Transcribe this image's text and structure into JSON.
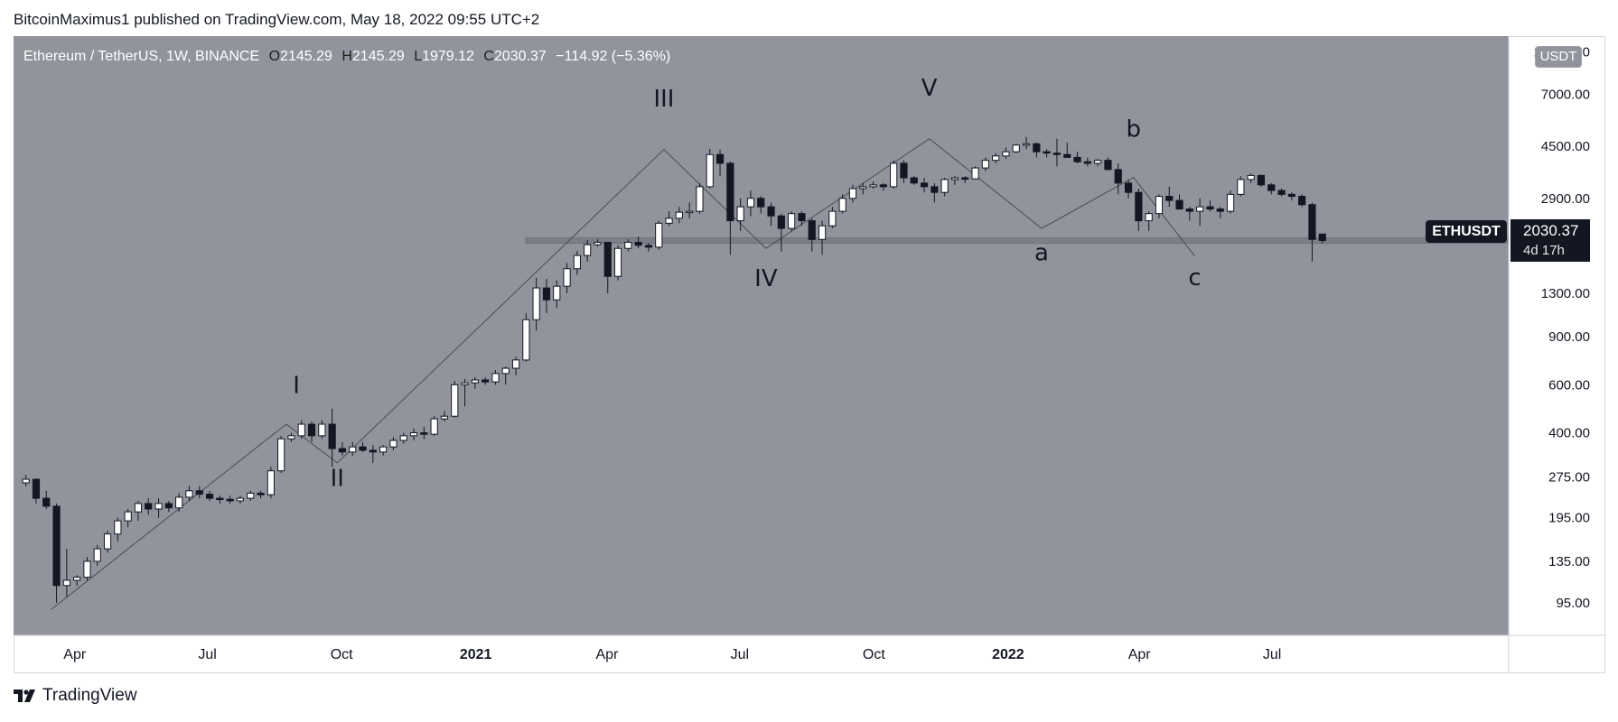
{
  "header": {
    "publisher_line": "BitcoinMaximus1 published on TradingView.com, May 18, 2022 09:55 UTC+2"
  },
  "legend": {
    "symbol": "Ethereum / TetherUS, 1W, BINANCE",
    "open_label": "O",
    "open": "2145.29",
    "high_label": "H",
    "high": "2145.29",
    "low_label": "L",
    "low": "1979.12",
    "close_label": "C",
    "close": "2030.37",
    "change": "−114.92 (−5.36%)"
  },
  "price_axis": {
    "currency": "USDT",
    "symbol_tag": "ETHUSDT",
    "last_price": "2030.37",
    "countdown": "4d 17h"
  },
  "footer": {
    "brand": "TradingView"
  },
  "colors": {
    "plot_background": "#91949c",
    "up_candle": "#ffffff",
    "down_candle": "#131722",
    "wave_line": "#4a4c52",
    "support_band": "#7c7f87",
    "label_text": "#131722"
  },
  "chart_data": {
    "type": "candlestick",
    "interval": "1W",
    "scale": "log",
    "ylim": [
      75,
      11000
    ],
    "x_start_week": "2020-02-24",
    "x_end_date": "2022-08-01",
    "y_ticks": [
      95,
      135,
      195,
      275,
      400,
      600,
      900,
      1300,
      2900,
      4500,
      7000,
      10000
    ],
    "y_tick_labels": [
      "95.00",
      "135.00",
      "195.00",
      "275.00",
      "400.00",
      "600.00",
      "900.00",
      "1300.00",
      "2900.00",
      "4500.00",
      "7000.00",
      "10000.00"
    ],
    "x_ticks": [
      {
        "label": "Apr",
        "date": "2020-04-01",
        "bold": false
      },
      {
        "label": "Jul",
        "date": "2020-07-01",
        "bold": false
      },
      {
        "label": "Oct",
        "date": "2020-10-01",
        "bold": false
      },
      {
        "label": "2021",
        "date": "2021-01-01",
        "bold": true
      },
      {
        "label": "Apr",
        "date": "2021-04-01",
        "bold": false
      },
      {
        "label": "Jul",
        "date": "2021-07-01",
        "bold": false
      },
      {
        "label": "Oct",
        "date": "2021-10-01",
        "bold": false
      },
      {
        "label": "2022",
        "date": "2022-01-01",
        "bold": true
      },
      {
        "label": "Apr",
        "date": "2022-04-01",
        "bold": false
      },
      {
        "label": "Jul",
        "date": "2022-07-01",
        "bold": false
      }
    ],
    "candles": [
      [
        262,
        280,
        255,
        270
      ],
      [
        270,
        272,
        220,
        230
      ],
      [
        230,
        245,
        210,
        215
      ],
      [
        215,
        220,
        95,
        110
      ],
      [
        110,
        150,
        100,
        115
      ],
      [
        115,
        120,
        110,
        118
      ],
      [
        118,
        140,
        115,
        135
      ],
      [
        135,
        155,
        130,
        150
      ],
      [
        150,
        175,
        145,
        170
      ],
      [
        170,
        195,
        160,
        190
      ],
      [
        190,
        210,
        180,
        205
      ],
      [
        205,
        225,
        190,
        220
      ],
      [
        220,
        230,
        200,
        210
      ],
      [
        210,
        230,
        195,
        220
      ],
      [
        220,
        225,
        205,
        212
      ],
      [
        212,
        240,
        205,
        232
      ],
      [
        232,
        255,
        225,
        245
      ],
      [
        245,
        255,
        230,
        238
      ],
      [
        238,
        245,
        225,
        230
      ],
      [
        230,
        235,
        220,
        228
      ],
      [
        228,
        235,
        220,
        225
      ],
      [
        225,
        235,
        220,
        230
      ],
      [
        230,
        245,
        225,
        240
      ],
      [
        240,
        245,
        230,
        237
      ],
      [
        237,
        300,
        230,
        290
      ],
      [
        290,
        390,
        285,
        380
      ],
      [
        380,
        400,
        370,
        390
      ],
      [
        390,
        445,
        380,
        430
      ],
      [
        430,
        440,
        370,
        390
      ],
      [
        390,
        445,
        380,
        430
      ],
      [
        430,
        490,
        300,
        350
      ],
      [
        350,
        370,
        330,
        340
      ],
      [
        340,
        370,
        330,
        355
      ],
      [
        355,
        370,
        340,
        345
      ],
      [
        345,
        360,
        310,
        340
      ],
      [
        340,
        360,
        330,
        355
      ],
      [
        355,
        385,
        345,
        375
      ],
      [
        375,
        400,
        365,
        390
      ],
      [
        390,
        415,
        375,
        400
      ],
      [
        400,
        420,
        380,
        395
      ],
      [
        395,
        460,
        390,
        450
      ],
      [
        450,
        480,
        440,
        460
      ],
      [
        460,
        620,
        455,
        600
      ],
      [
        600,
        630,
        500,
        610
      ],
      [
        610,
        640,
        580,
        625
      ],
      [
        625,
        640,
        600,
        615
      ],
      [
        615,
        680,
        600,
        660
      ],
      [
        660,
        700,
        600,
        690
      ],
      [
        690,
        760,
        650,
        740
      ],
      [
        740,
        1100,
        730,
        1040
      ],
      [
        1040,
        1480,
        950,
        1360
      ],
      [
        1360,
        1470,
        1100,
        1230
      ],
      [
        1230,
        1450,
        1150,
        1380
      ],
      [
        1380,
        1680,
        1300,
        1600
      ],
      [
        1600,
        1860,
        1520,
        1790
      ],
      [
        1790,
        2040,
        1700,
        1960
      ],
      [
        1960,
        2050,
        1930,
        2000
      ],
      [
        2000,
        2000,
        1300,
        1500
      ],
      [
        1500,
        1950,
        1450,
        1900
      ],
      [
        1900,
        2050,
        1850,
        2000
      ],
      [
        2000,
        2100,
        1900,
        1950
      ],
      [
        1950,
        1990,
        1850,
        1920
      ],
      [
        1920,
        2400,
        1880,
        2350
      ],
      [
        2350,
        2600,
        2300,
        2450
      ],
      [
        2450,
        2700,
        2350,
        2580
      ],
      [
        2580,
        2800,
        2450,
        2600
      ],
      [
        2600,
        3300,
        2550,
        3200
      ],
      [
        3200,
        4400,
        3150,
        4200
      ],
      [
        4200,
        4380,
        3500,
        3900
      ],
      [
        3900,
        3960,
        1800,
        2400
      ],
      [
        2400,
        2900,
        2200,
        2700
      ],
      [
        2700,
        3100,
        2500,
        2900
      ],
      [
        2900,
        2950,
        2550,
        2700
      ],
      [
        2700,
        2800,
        2300,
        2500
      ],
      [
        2500,
        2550,
        1850,
        2250
      ],
      [
        2250,
        2600,
        2200,
        2550
      ],
      [
        2550,
        2600,
        2300,
        2400
      ],
      [
        2400,
        2450,
        1850,
        2050
      ],
      [
        2050,
        2400,
        1800,
        2300
      ],
      [
        2300,
        2700,
        2250,
        2600
      ],
      [
        2600,
        3000,
        2550,
        2900
      ],
      [
        2900,
        3250,
        2800,
        3150
      ],
      [
        3150,
        3300,
        3000,
        3200
      ],
      [
        3200,
        3350,
        3150,
        3250
      ],
      [
        3250,
        3300,
        3100,
        3200
      ],
      [
        3200,
        4000,
        3150,
        3900
      ],
      [
        3900,
        4000,
        3300,
        3450
      ],
      [
        3450,
        3500,
        3250,
        3300
      ],
      [
        3300,
        3450,
        3050,
        3200
      ],
      [
        3200,
        3300,
        2800,
        3050
      ],
      [
        3050,
        3450,
        2950,
        3400
      ],
      [
        3400,
        3500,
        3250,
        3450
      ],
      [
        3450,
        3500,
        3300,
        3420
      ],
      [
        3420,
        3800,
        3400,
        3750
      ],
      [
        3750,
        4100,
        3650,
        4000
      ],
      [
        4000,
        4250,
        3900,
        4150
      ],
      [
        4150,
        4460,
        4050,
        4300
      ],
      [
        4300,
        4600,
        4250,
        4550
      ],
      [
        4550,
        4870,
        4400,
        4600
      ],
      [
        4600,
        4650,
        4100,
        4300
      ],
      [
        4300,
        4400,
        4100,
        4250
      ],
      [
        4250,
        4800,
        3800,
        4200
      ],
      [
        4200,
        4650,
        4100,
        4100
      ],
      [
        4100,
        4300,
        3900,
        3950
      ],
      [
        3950,
        4100,
        3800,
        3900
      ],
      [
        3900,
        4050,
        3800,
        4000
      ],
      [
        4000,
        4100,
        3700,
        3700
      ],
      [
        3700,
        3900,
        3000,
        3300
      ],
      [
        3300,
        3400,
        2900,
        3050
      ],
      [
        3050,
        3150,
        2200,
        2400
      ],
      [
        2400,
        2600,
        2200,
        2550
      ],
      [
        2550,
        3000,
        2450,
        2950
      ],
      [
        2950,
        3200,
        2700,
        2850
      ],
      [
        2850,
        3000,
        2650,
        2650
      ],
      [
        2650,
        2700,
        2400,
        2600
      ],
      [
        2600,
        2900,
        2300,
        2700
      ],
      [
        2700,
        2850,
        2600,
        2650
      ],
      [
        2650,
        2700,
        2450,
        2600
      ],
      [
        2600,
        3100,
        2550,
        3000
      ],
      [
        3000,
        3500,
        2950,
        3400
      ],
      [
        3400,
        3580,
        3300,
        3520
      ],
      [
        3520,
        3550,
        3200,
        3250
      ],
      [
        3250,
        3300,
        3000,
        3100
      ],
      [
        3100,
        3150,
        2950,
        3000
      ],
      [
        3000,
        3050,
        2850,
        2950
      ],
      [
        2950,
        3000,
        2700,
        2750
      ],
      [
        2750,
        2800,
        1700,
        2050
      ],
      [
        2145.29,
        2145.29,
        1979.12,
        2030.37
      ]
    ],
    "support_level": 2030,
    "wave_path": [
      {
        "date": "2020-03-16",
        "price": 90
      },
      {
        "date": "2020-08-24",
        "price": 430
      },
      {
        "date": "2020-09-28",
        "price": 310
      },
      {
        "date": "2021-05-10",
        "price": 4380
      },
      {
        "date": "2021-07-19",
        "price": 1900
      },
      {
        "date": "2021-11-08",
        "price": 4800
      },
      {
        "date": "2022-01-24",
        "price": 2250
      },
      {
        "date": "2022-03-28",
        "price": 3460
      },
      {
        "date": "2022-05-09",
        "price": 1780
      }
    ],
    "wave_labels": [
      {
        "text": "I",
        "date": "2020-08-31",
        "price": 560
      },
      {
        "text": "II",
        "date": "2020-09-28",
        "price": 255
      },
      {
        "text": "III",
        "date": "2021-05-10",
        "price": 6300
      },
      {
        "text": "IV",
        "date": "2021-07-19",
        "price": 1380
      },
      {
        "text": "V",
        "date": "2021-11-08",
        "price": 6900
      },
      {
        "text": "a",
        "date": "2022-01-24",
        "price": 1720
      },
      {
        "text": "b",
        "date": "2022-03-28",
        "price": 4880
      },
      {
        "text": "c",
        "date": "2022-05-09",
        "price": 1390
      }
    ]
  }
}
